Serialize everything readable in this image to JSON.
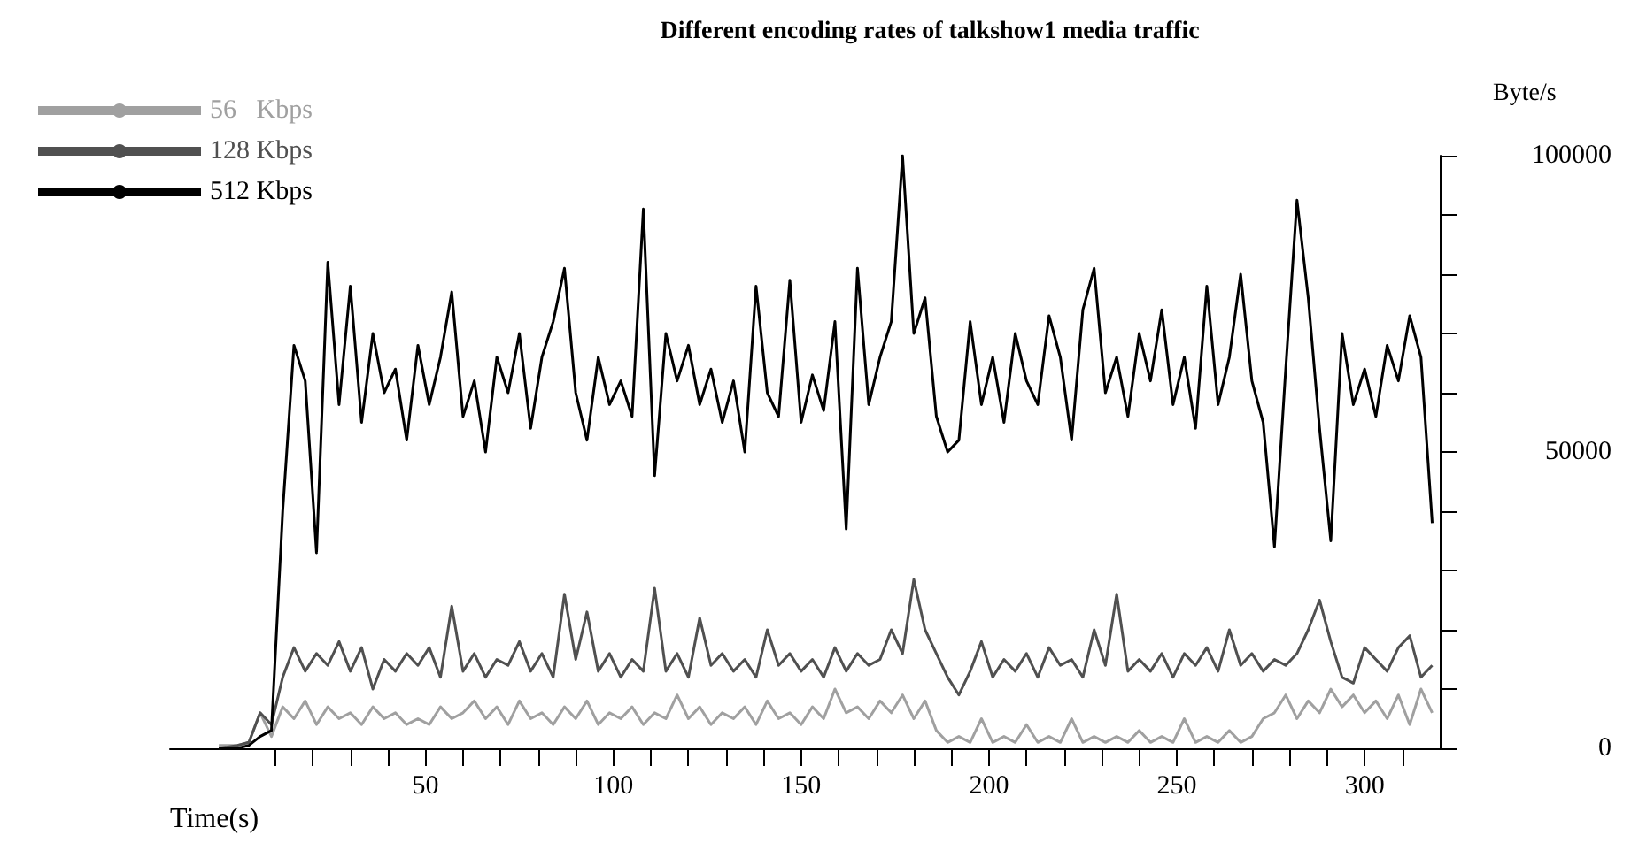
{
  "chart_data": {
    "type": "line",
    "title": "Different encoding rates of talkshow1 media traffic",
    "xlabel": "Time(s)",
    "ylabel": "Byte/s",
    "x": [
      -5,
      0,
      3,
      6,
      9,
      12,
      15,
      18,
      21,
      24,
      27,
      30,
      33,
      36,
      39,
      42,
      45,
      48,
      51,
      54,
      57,
      60,
      63,
      66,
      69,
      72,
      75,
      78,
      81,
      84,
      87,
      90,
      93,
      96,
      99,
      102,
      105,
      108,
      111,
      114,
      117,
      120,
      123,
      126,
      129,
      132,
      135,
      138,
      141,
      144,
      147,
      150,
      153,
      156,
      159,
      162,
      165,
      168,
      171,
      174,
      177,
      180,
      183,
      186,
      189,
      192,
      195,
      198,
      201,
      204,
      207,
      210,
      213,
      216,
      219,
      222,
      225,
      228,
      231,
      234,
      237,
      240,
      243,
      246,
      249,
      252,
      255,
      258,
      261,
      264,
      267,
      270,
      273,
      276,
      279,
      282,
      285,
      288,
      291,
      294,
      297,
      300,
      303,
      306,
      309,
      312,
      315,
      318
    ],
    "series": [
      {
        "name": "56   Kbps",
        "color": "#a0a0a0",
        "values": [
          500,
          500,
          1000,
          6000,
          2000,
          7000,
          5000,
          8000,
          4000,
          7000,
          5000,
          6000,
          4000,
          7000,
          5000,
          6000,
          4000,
          5000,
          4000,
          7000,
          5000,
          6000,
          8000,
          5000,
          7000,
          4000,
          8000,
          5000,
          6000,
          4000,
          7000,
          5000,
          8000,
          4000,
          6000,
          5000,
          7000,
          4000,
          6000,
          5000,
          9000,
          5000,
          7000,
          4000,
          6000,
          5000,
          7000,
          4000,
          8000,
          5000,
          6000,
          4000,
          7000,
          5000,
          10000,
          6000,
          7000,
          5000,
          8000,
          6000,
          9000,
          5000,
          8000,
          3000,
          1000,
          2000,
          1000,
          5000,
          1000,
          2000,
          1000,
          4000,
          1000,
          2000,
          1000,
          5000,
          1000,
          2000,
          1000,
          2000,
          1000,
          3000,
          1000,
          2000,
          1000,
          5000,
          1000,
          2000,
          1000,
          3000,
          1000,
          2000,
          5000,
          6000,
          9000,
          5000,
          8000,
          6000,
          10000,
          7000,
          9000,
          6000,
          8000,
          5000,
          9000,
          4000,
          10000,
          6000
        ]
      },
      {
        "name": "128 Kbps",
        "color": "#505050",
        "values": [
          0,
          500,
          1000,
          6000,
          4000,
          12000,
          17000,
          13000,
          16000,
          14000,
          18000,
          13000,
          17000,
          10000,
          15000,
          13000,
          16000,
          14000,
          17000,
          12000,
          24000,
          13000,
          16000,
          12000,
          15000,
          14000,
          18000,
          13000,
          16000,
          12000,
          26000,
          15000,
          23000,
          13000,
          16000,
          12000,
          15000,
          13000,
          27000,
          13000,
          16000,
          12000,
          22000,
          14000,
          16000,
          13000,
          15000,
          12000,
          20000,
          14000,
          16000,
          13000,
          15000,
          12000,
          17000,
          13000,
          16000,
          14000,
          15000,
          20000,
          16000,
          28500,
          20000,
          16000,
          12000,
          9000,
          13000,
          18000,
          12000,
          15000,
          13000,
          16000,
          12000,
          17000,
          14000,
          15000,
          12000,
          20000,
          14000,
          26000,
          13000,
          15000,
          13000,
          16000,
          12000,
          16000,
          14000,
          17000,
          13000,
          20000,
          14000,
          16000,
          13000,
          15000,
          14000,
          16000,
          20000,
          25000,
          18000,
          12000,
          11000,
          17000,
          15000,
          13000,
          17000,
          19000,
          12000,
          14000
        ]
      },
      {
        "name": "512 Kbps",
        "color": "#000000",
        "values": [
          0,
          0,
          500,
          2000,
          3000,
          40000,
          68000,
          62000,
          33000,
          82000,
          58000,
          78000,
          55000,
          70000,
          60000,
          64000,
          52000,
          68000,
          58000,
          66000,
          77000,
          56000,
          62000,
          50000,
          66000,
          60000,
          70000,
          54000,
          66000,
          72000,
          81000,
          60000,
          52000,
          66000,
          58000,
          62000,
          56000,
          91000,
          46000,
          70000,
          62000,
          68000,
          58000,
          64000,
          55000,
          62000,
          50000,
          78000,
          60000,
          56000,
          79000,
          55000,
          63000,
          57000,
          72000,
          37000,
          81000,
          58000,
          66000,
          72000,
          100000,
          70000,
          76000,
          56000,
          50000,
          52000,
          72000,
          58000,
          66000,
          55000,
          70000,
          62000,
          58000,
          73000,
          66000,
          52000,
          74000,
          81000,
          60000,
          66000,
          56000,
          70000,
          62000,
          74000,
          58000,
          66000,
          54000,
          78000,
          58000,
          66000,
          80000,
          62000,
          55000,
          34000,
          64000,
          92500,
          76000,
          54000,
          35000,
          70000,
          58000,
          64000,
          56000,
          68000,
          62000,
          73000,
          66000,
          38000
        ]
      }
    ],
    "xlim": [
      -18,
      320
    ],
    "ylim": [
      0,
      100000
    ],
    "xticks": [
      {
        "value": 10,
        "label": null
      },
      {
        "value": 20,
        "label": null
      },
      {
        "value": 30,
        "label": null
      },
      {
        "value": 40,
        "label": null
      },
      50,
      {
        "value": 60,
        "label": null
      },
      {
        "value": 70,
        "label": null
      },
      {
        "value": 80,
        "label": null
      },
      {
        "value": 90,
        "label": null
      },
      100,
      {
        "value": 110,
        "label": null
      },
      {
        "value": 120,
        "label": null
      },
      {
        "value": 130,
        "label": null
      },
      {
        "value": 140,
        "label": null
      },
      150,
      {
        "value": 160,
        "label": null
      },
      {
        "value": 170,
        "label": null
      },
      {
        "value": 180,
        "label": null
      },
      {
        "value": 190,
        "label": null
      },
      200,
      {
        "value": 210,
        "label": null
      },
      {
        "value": 220,
        "label": null
      },
      {
        "value": 230,
        "label": null
      },
      {
        "value": 240,
        "label": null
      },
      250,
      {
        "value": 260,
        "label": null
      },
      {
        "value": 270,
        "label": null
      },
      {
        "value": 280,
        "label": null
      },
      {
        "value": 290,
        "label": null
      },
      300,
      {
        "value": 310,
        "label": null
      }
    ],
    "yticks": [
      0,
      {
        "value": 10000,
        "label": null
      },
      {
        "value": 20000,
        "label": null
      },
      {
        "value": 30000,
        "label": null
      },
      {
        "value": 40000,
        "label": null
      },
      50000,
      {
        "value": 60000,
        "label": null
      },
      {
        "value": 70000,
        "label": null
      },
      {
        "value": 80000,
        "label": null
      },
      {
        "value": 90000,
        "label": null
      },
      100000
    ],
    "grid": false,
    "legend": "top left",
    "marker": "none",
    "line_style": "solid"
  }
}
